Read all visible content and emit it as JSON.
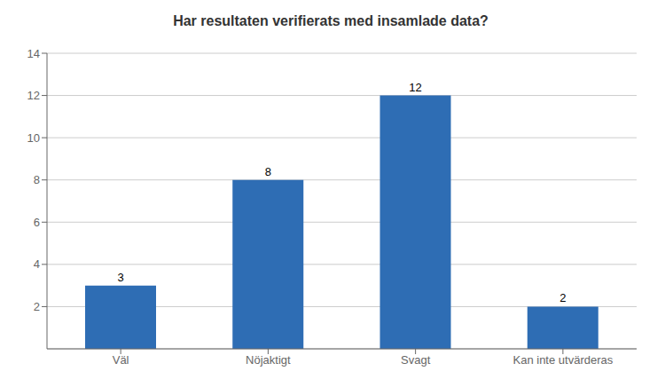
{
  "chart_data": {
    "type": "bar",
    "title": "Har resultaten verifierats med insamlade data?",
    "categories": [
      "Väl",
      "Nöjaktigt",
      "Svagt",
      "Kan inte utvärderas"
    ],
    "values": [
      3,
      8,
      12,
      2
    ],
    "color": "#2E6DB4",
    "ylim": [
      0,
      14
    ],
    "yticks": [
      2,
      4,
      6,
      8,
      10,
      12,
      14
    ],
    "grid": true,
    "data_labels": true
  }
}
